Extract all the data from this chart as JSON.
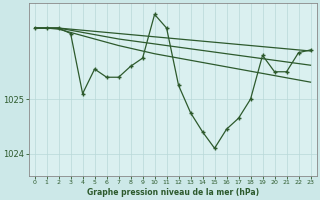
{
  "title": "Graphe pression niveau de la mer (hPa)",
  "bg_color": "#cce8e8",
  "plot_bg_color": "#daf0f0",
  "line_color": "#2d5a2d",
  "grid_color": "#b8d8d8",
  "hours": [
    0,
    1,
    2,
    3,
    4,
    5,
    6,
    7,
    8,
    9,
    10,
    11,
    12,
    13,
    14,
    15,
    16,
    17,
    18,
    19,
    20,
    21,
    22,
    23
  ],
  "series_main": [
    1026.3,
    1026.3,
    1026.3,
    1026.2,
    1025.1,
    1025.55,
    1025.4,
    1025.4,
    1025.6,
    1025.75,
    1026.55,
    1026.3,
    1025.25,
    1024.75,
    1024.4,
    1024.1,
    1024.45,
    1024.65,
    1025.0,
    1025.8,
    1025.5,
    1025.5,
    1025.85,
    1025.9
  ],
  "series_flat1": [
    1026.3,
    1026.3,
    1026.3,
    1026.28,
    1026.26,
    1026.24,
    1026.22,
    1026.2,
    1026.18,
    1026.16,
    1026.14,
    1026.12,
    1026.1,
    1026.08,
    1026.06,
    1026.04,
    1026.02,
    1026.0,
    1025.98,
    1025.96,
    1025.94,
    1025.92,
    1025.9,
    1025.88
  ],
  "series_flat2": [
    1026.3,
    1026.3,
    1026.3,
    1026.26,
    1026.22,
    1026.18,
    1026.14,
    1026.1,
    1026.07,
    1026.04,
    1026.01,
    1025.98,
    1025.95,
    1025.92,
    1025.89,
    1025.86,
    1025.83,
    1025.8,
    1025.77,
    1025.74,
    1025.71,
    1025.68,
    1025.65,
    1025.62
  ],
  "series_flat3": [
    1026.3,
    1026.3,
    1026.28,
    1026.22,
    1026.16,
    1026.1,
    1026.04,
    1025.98,
    1025.93,
    1025.88,
    1025.83,
    1025.79,
    1025.75,
    1025.71,
    1025.67,
    1025.63,
    1025.59,
    1025.55,
    1025.51,
    1025.47,
    1025.43,
    1025.39,
    1025.35,
    1025.31
  ],
  "ylim": [
    1023.6,
    1026.75
  ],
  "yticks": [
    1024,
    1025
  ],
  "figsize": [
    3.2,
    2.0
  ],
  "dpi": 100
}
